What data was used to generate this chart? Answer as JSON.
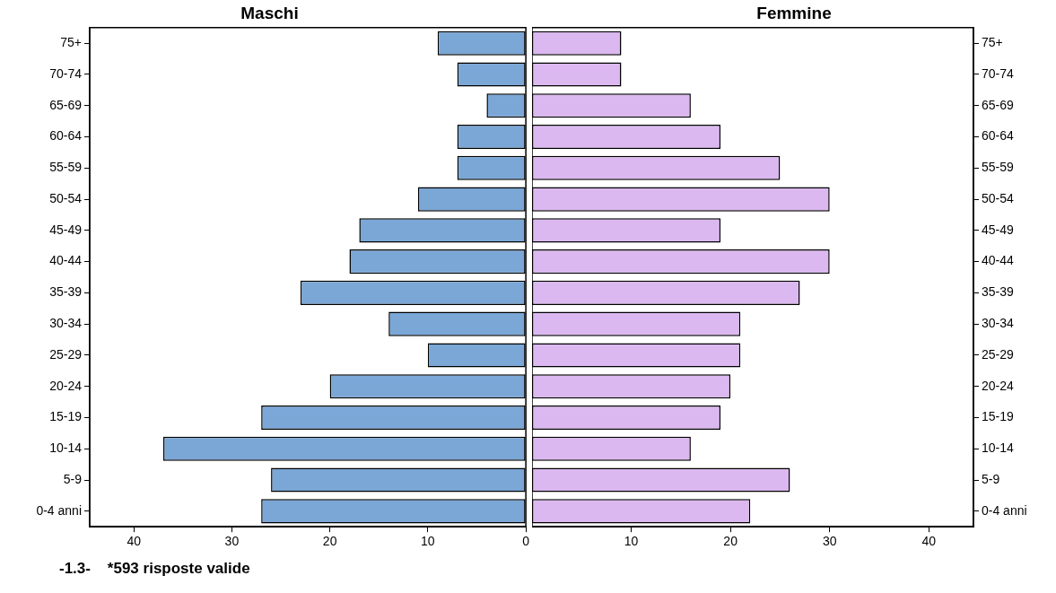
{
  "chart_data": [
    {
      "type": "bar",
      "orientation": "horizontal",
      "title": "Maschi",
      "categories": [
        "75+",
        "70-74",
        "65-69",
        "60-64",
        "55-59",
        "50-54",
        "45-49",
        "40-44",
        "35-39",
        "30-34",
        "25-29",
        "20-24",
        "15-19",
        "10-14",
        "5-9",
        "0-4 anni"
      ],
      "values": [
        9,
        7,
        4,
        7,
        7,
        11,
        17,
        18,
        23,
        14,
        10,
        20,
        27,
        37,
        26,
        27
      ],
      "color": "#7ba7d6",
      "xlim": [
        44.5,
        0
      ],
      "xticks": [
        40,
        30,
        20,
        10,
        0
      ],
      "grid": false,
      "annotations": [
        "-1.3-    *593 risposte valide"
      ]
    },
    {
      "type": "bar",
      "orientation": "horizontal",
      "title": "Femmine",
      "categories": [
        "75+",
        "70-74",
        "65-69",
        "60-64",
        "55-59",
        "50-54",
        "45-49",
        "40-44",
        "35-39",
        "30-34",
        "25-29",
        "20-24",
        "15-19",
        "10-14",
        "5-9",
        "0-4 anni"
      ],
      "values": [
        9,
        9,
        16,
        19,
        25,
        30,
        19,
        30,
        27,
        21,
        21,
        20,
        19,
        16,
        26,
        22
      ],
      "color": "#dbb8f0",
      "xlim": [
        0,
        44.5
      ],
      "xticks": [
        10,
        20,
        30,
        40
      ],
      "grid": false
    }
  ]
}
